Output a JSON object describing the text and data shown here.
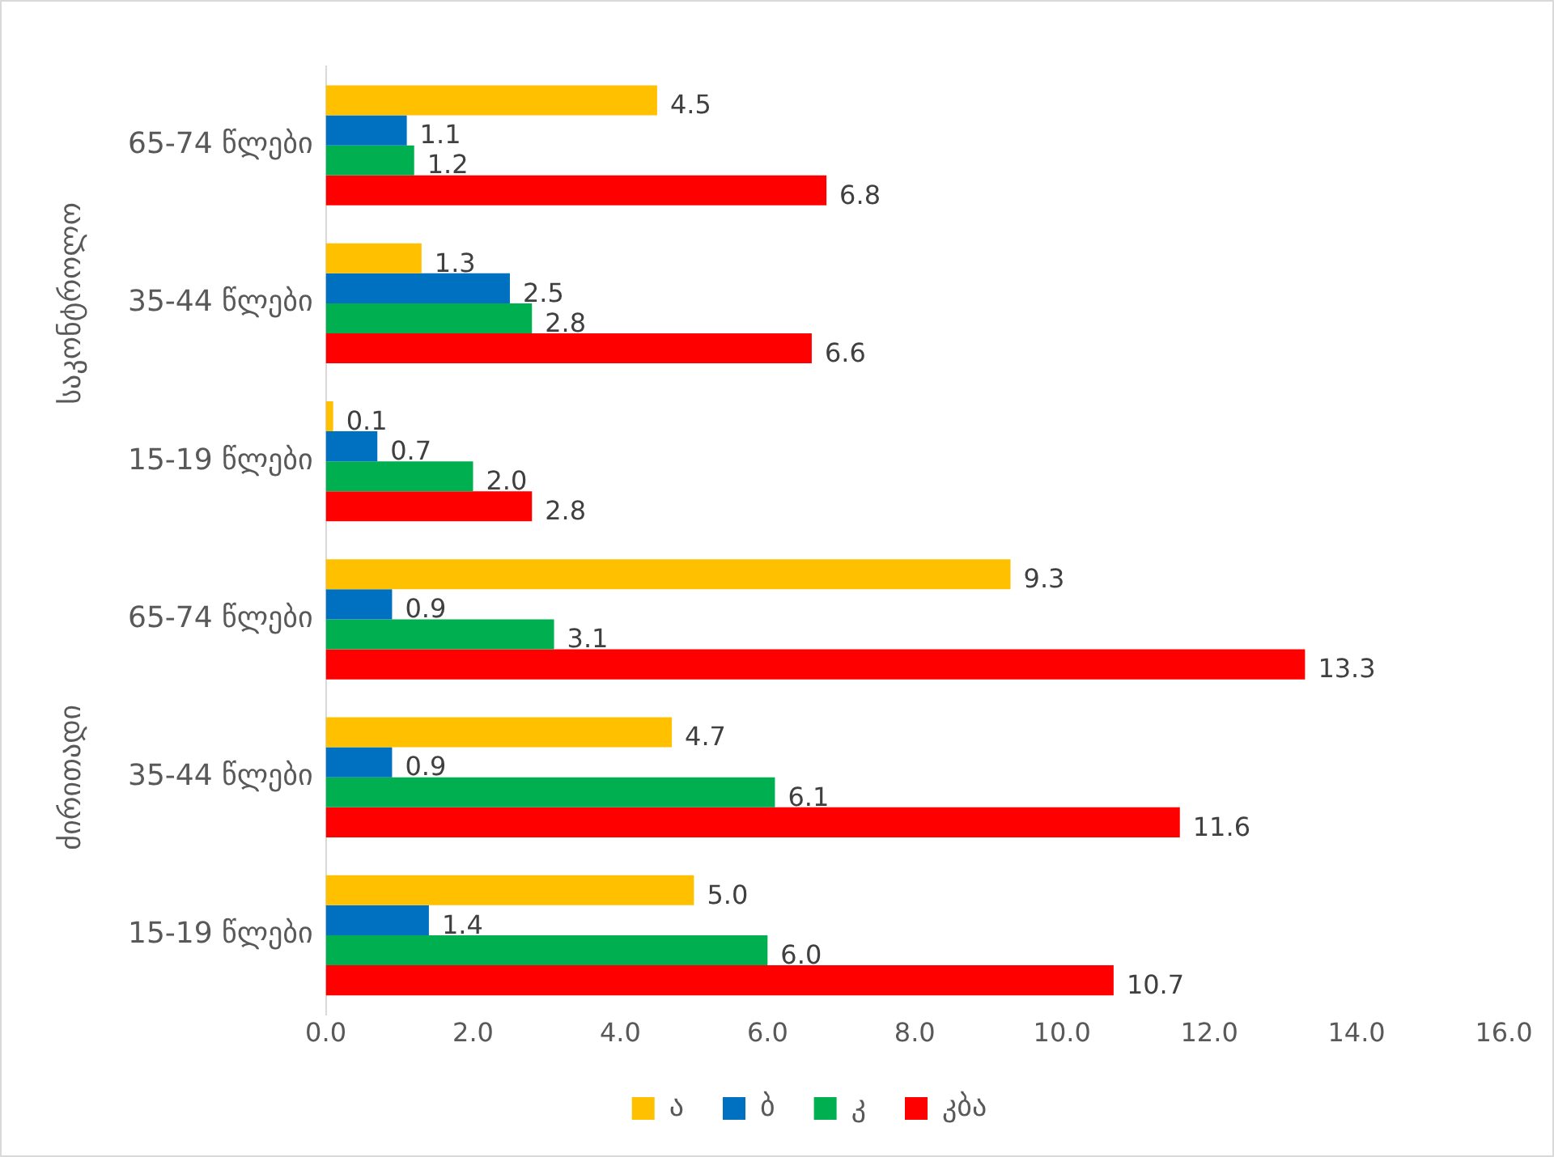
{
  "chart_data": {
    "type": "bar",
    "orientation": "horizontal",
    "categories": [
      "65-74 წლები",
      "35-44 წლები",
      "15-19 წლები",
      "65-74 წლები",
      "35-44 წლები",
      "15-19 წლები"
    ],
    "series": [
      {
        "name": "ა",
        "color": "#ffc000",
        "values": [
          4.5,
          1.3,
          0.1,
          9.3,
          4.7,
          5.0
        ],
        "value_labels": [
          "4.5",
          "1.3",
          "0.1",
          "9.3",
          "4.7",
          "5.0"
        ]
      },
      {
        "name": "ბ",
        "color": "#0070c0",
        "values": [
          1.1,
          2.5,
          0.7,
          0.9,
          0.9,
          1.4
        ],
        "value_labels": [
          "1.1",
          "2.5",
          "0.7",
          "0.9",
          "0.9",
          "1.4"
        ]
      },
      {
        "name": "კ",
        "color": "#00b050",
        "values": [
          1.2,
          2.8,
          2.0,
          3.1,
          6.1,
          6.0
        ],
        "value_labels": [
          "1.2",
          "2.8",
          "2.0",
          "3.1",
          "6.1",
          "6.0"
        ]
      },
      {
        "name": "კბა",
        "color": "#ff0000",
        "values": [
          6.8,
          6.6,
          2.8,
          13.3,
          11.6,
          10.7
        ],
        "value_labels": [
          "6.8",
          "6.6",
          "2.8",
          "13.3",
          "11.6",
          "10.7"
        ]
      }
    ],
    "xlim": [
      0,
      16
    ],
    "xticks": [
      {
        "value": 0,
        "label": "0.0"
      },
      {
        "value": 2,
        "label": "2.0"
      },
      {
        "value": 4,
        "label": "4.0"
      },
      {
        "value": 6,
        "label": "6.0"
      },
      {
        "value": 8,
        "label": "8.0"
      },
      {
        "value": 10,
        "label": "10.0"
      },
      {
        "value": 12,
        "label": "12.0"
      },
      {
        "value": 14,
        "label": "14.0"
      },
      {
        "value": 16,
        "label": "16.0"
      }
    ],
    "annotations": [
      "საკონტროლო",
      "ძირითადი"
    ],
    "grid": false,
    "legend": "bottom"
  }
}
